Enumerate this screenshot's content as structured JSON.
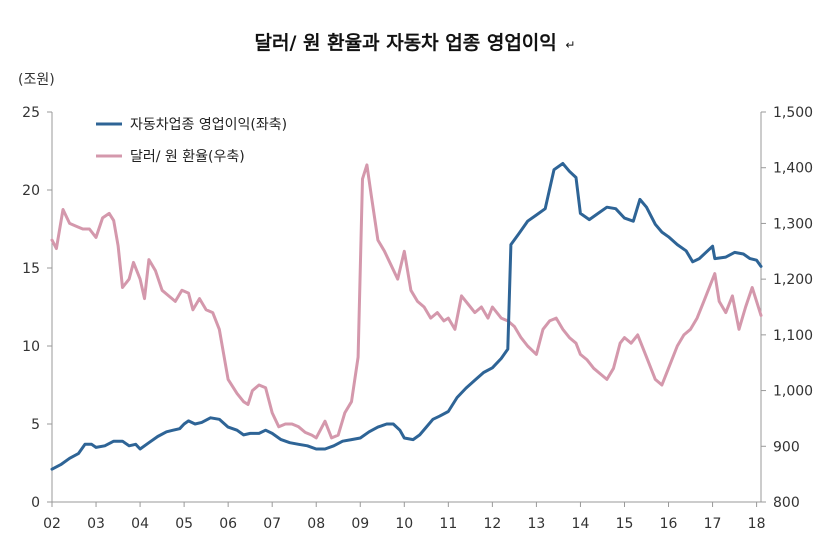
{
  "chart_data": {
    "type": "line",
    "title": "달러/ 원 환율과 자동차 업종 영업이익",
    "title_end_mark": "↵",
    "left_axis": {
      "unit_label": "(조원)",
      "ylim": [
        0,
        25
      ],
      "ticks": [
        "0",
        "5",
        "10",
        "15",
        "20",
        "25"
      ],
      "tick_values": [
        0,
        5,
        10,
        15,
        20,
        25
      ]
    },
    "right_axis": {
      "ylim": [
        800,
        1500
      ],
      "ticks": [
        "800",
        "900",
        "1,000",
        "1,100",
        "1,200",
        "1,300",
        "1,400",
        "1,500"
      ],
      "tick_values": [
        800,
        900,
        1000,
        1100,
        1200,
        1300,
        1400,
        1500
      ]
    },
    "x_axis": {
      "xlim": [
        2002,
        2018.1
      ],
      "ticks": [
        "02",
        "03",
        "04",
        "05",
        "06",
        "07",
        "08",
        "09",
        "10",
        "11",
        "12",
        "13",
        "14",
        "15",
        "16",
        "17",
        "18"
      ],
      "tick_values": [
        2002,
        2003,
        2004,
        2005,
        2006,
        2007,
        2008,
        2009,
        2010,
        2011,
        2012,
        2013,
        2014,
        2015,
        2016,
        2017,
        2018
      ]
    },
    "grid": false,
    "legend_position": "top-left",
    "series": [
      {
        "name": "자동차업종 영업이익(좌축)",
        "axis": "left",
        "color": "#2e6496",
        "points": [
          [
            2002.0,
            2.1
          ],
          [
            2002.2,
            2.4
          ],
          [
            2002.4,
            2.8
          ],
          [
            2002.6,
            3.1
          ],
          [
            2002.75,
            3.7
          ],
          [
            2002.9,
            3.7
          ],
          [
            2003.0,
            3.5
          ],
          [
            2003.2,
            3.6
          ],
          [
            2003.4,
            3.9
          ],
          [
            2003.6,
            3.9
          ],
          [
            2003.75,
            3.6
          ],
          [
            2003.9,
            3.7
          ],
          [
            2004.0,
            3.4
          ],
          [
            2004.2,
            3.8
          ],
          [
            2004.4,
            4.2
          ],
          [
            2004.6,
            4.5
          ],
          [
            2004.75,
            4.6
          ],
          [
            2004.9,
            4.7
          ],
          [
            2005.0,
            5.0
          ],
          [
            2005.1,
            5.2
          ],
          [
            2005.25,
            5.0
          ],
          [
            2005.4,
            5.1
          ],
          [
            2005.6,
            5.4
          ],
          [
            2005.8,
            5.3
          ],
          [
            2006.0,
            4.8
          ],
          [
            2006.2,
            4.6
          ],
          [
            2006.35,
            4.3
          ],
          [
            2006.5,
            4.4
          ],
          [
            2006.7,
            4.4
          ],
          [
            2006.85,
            4.6
          ],
          [
            2007.0,
            4.4
          ],
          [
            2007.2,
            4.0
          ],
          [
            2007.4,
            3.8
          ],
          [
            2007.6,
            3.7
          ],
          [
            2007.8,
            3.6
          ],
          [
            2008.0,
            3.4
          ],
          [
            2008.2,
            3.4
          ],
          [
            2008.4,
            3.6
          ],
          [
            2008.6,
            3.9
          ],
          [
            2008.8,
            4.0
          ],
          [
            2009.0,
            4.1
          ],
          [
            2009.2,
            4.5
          ],
          [
            2009.4,
            4.8
          ],
          [
            2009.6,
            5.0
          ],
          [
            2009.75,
            5.0
          ],
          [
            2009.9,
            4.6
          ],
          [
            2010.0,
            4.1
          ],
          [
            2010.2,
            4.0
          ],
          [
            2010.35,
            4.3
          ],
          [
            2010.5,
            4.8
          ],
          [
            2010.65,
            5.3
          ],
          [
            2010.8,
            5.5
          ],
          [
            2011.0,
            5.8
          ],
          [
            2011.2,
            6.7
          ],
          [
            2011.4,
            7.3
          ],
          [
            2011.6,
            7.8
          ],
          [
            2011.8,
            8.3
          ],
          [
            2012.0,
            8.6
          ],
          [
            2012.2,
            9.2
          ],
          [
            2012.35,
            9.8
          ],
          [
            2012.42,
            16.5
          ],
          [
            2012.6,
            17.2
          ],
          [
            2012.8,
            18.0
          ],
          [
            2013.0,
            18.4
          ],
          [
            2013.2,
            18.8
          ],
          [
            2013.4,
            21.3
          ],
          [
            2013.6,
            21.7
          ],
          [
            2013.75,
            21.2
          ],
          [
            2013.9,
            20.8
          ],
          [
            2014.0,
            18.5
          ],
          [
            2014.2,
            18.1
          ],
          [
            2014.4,
            18.5
          ],
          [
            2014.6,
            18.9
          ],
          [
            2014.8,
            18.8
          ],
          [
            2015.0,
            18.2
          ],
          [
            2015.2,
            18.0
          ],
          [
            2015.35,
            19.4
          ],
          [
            2015.5,
            18.9
          ],
          [
            2015.7,
            17.8
          ],
          [
            2015.85,
            17.3
          ],
          [
            2016.0,
            17.0
          ],
          [
            2016.2,
            16.5
          ],
          [
            2016.4,
            16.1
          ],
          [
            2016.55,
            15.4
          ],
          [
            2016.7,
            15.6
          ],
          [
            2017.0,
            16.4
          ],
          [
            2017.05,
            15.6
          ],
          [
            2017.3,
            15.7
          ],
          [
            2017.5,
            16.0
          ],
          [
            2017.7,
            15.9
          ],
          [
            2017.85,
            15.6
          ],
          [
            2018.0,
            15.5
          ],
          [
            2018.1,
            15.1
          ]
        ]
      },
      {
        "name": "달러/ 원 환율(우축)",
        "axis": "right",
        "color": "#d498ac",
        "points": [
          [
            2002.0,
            1270
          ],
          [
            2002.1,
            1255
          ],
          [
            2002.25,
            1325
          ],
          [
            2002.4,
            1300
          ],
          [
            2002.55,
            1295
          ],
          [
            2002.7,
            1290
          ],
          [
            2002.85,
            1290
          ],
          [
            2003.0,
            1275
          ],
          [
            2003.15,
            1310
          ],
          [
            2003.3,
            1318
          ],
          [
            2003.4,
            1305
          ],
          [
            2003.5,
            1260
          ],
          [
            2003.6,
            1185
          ],
          [
            2003.75,
            1200
          ],
          [
            2003.85,
            1230
          ],
          [
            2004.0,
            1200
          ],
          [
            2004.1,
            1165
          ],
          [
            2004.2,
            1235
          ],
          [
            2004.35,
            1215
          ],
          [
            2004.5,
            1180
          ],
          [
            2004.65,
            1170
          ],
          [
            2004.8,
            1160
          ],
          [
            2004.95,
            1180
          ],
          [
            2005.1,
            1175
          ],
          [
            2005.2,
            1145
          ],
          [
            2005.35,
            1165
          ],
          [
            2005.5,
            1145
          ],
          [
            2005.65,
            1140
          ],
          [
            2005.8,
            1110
          ],
          [
            2006.0,
            1020
          ],
          [
            2006.2,
            995
          ],
          [
            2006.35,
            980
          ],
          [
            2006.45,
            975
          ],
          [
            2006.55,
            1000
          ],
          [
            2006.7,
            1010
          ],
          [
            2006.85,
            1005
          ],
          [
            2007.0,
            960
          ],
          [
            2007.15,
            935
          ],
          [
            2007.3,
            940
          ],
          [
            2007.45,
            940
          ],
          [
            2007.6,
            935
          ],
          [
            2007.75,
            925
          ],
          [
            2007.9,
            920
          ],
          [
            2008.0,
            915
          ],
          [
            2008.2,
            945
          ],
          [
            2008.35,
            915
          ],
          [
            2008.5,
            920
          ],
          [
            2008.65,
            960
          ],
          [
            2008.8,
            980
          ],
          [
            2008.95,
            1060
          ],
          [
            2009.05,
            1380
          ],
          [
            2009.15,
            1405
          ],
          [
            2009.25,
            1350
          ],
          [
            2009.4,
            1270
          ],
          [
            2009.55,
            1250
          ],
          [
            2009.7,
            1225
          ],
          [
            2009.85,
            1200
          ],
          [
            2010.0,
            1250
          ],
          [
            2010.15,
            1180
          ],
          [
            2010.3,
            1160
          ],
          [
            2010.45,
            1150
          ],
          [
            2010.6,
            1130
          ],
          [
            2010.75,
            1140
          ],
          [
            2010.9,
            1125
          ],
          [
            2011.0,
            1130
          ],
          [
            2011.15,
            1110
          ],
          [
            2011.3,
            1170
          ],
          [
            2011.5,
            1150
          ],
          [
            2011.6,
            1140
          ],
          [
            2011.75,
            1150
          ],
          [
            2011.9,
            1130
          ],
          [
            2012.0,
            1150
          ],
          [
            2012.2,
            1130
          ],
          [
            2012.35,
            1125
          ],
          [
            2012.5,
            1115
          ],
          [
            2012.65,
            1095
          ],
          [
            2012.8,
            1080
          ],
          [
            2013.0,
            1065
          ],
          [
            2013.15,
            1110
          ],
          [
            2013.3,
            1125
          ],
          [
            2013.45,
            1130
          ],
          [
            2013.6,
            1110
          ],
          [
            2013.75,
            1095
          ],
          [
            2013.9,
            1085
          ],
          [
            2014.0,
            1065
          ],
          [
            2014.15,
            1055
          ],
          [
            2014.3,
            1040
          ],
          [
            2014.45,
            1030
          ],
          [
            2014.6,
            1020
          ],
          [
            2014.75,
            1040
          ],
          [
            2014.9,
            1085
          ],
          [
            2015.0,
            1095
          ],
          [
            2015.15,
            1085
          ],
          [
            2015.3,
            1100
          ],
          [
            2015.5,
            1060
          ],
          [
            2015.7,
            1020
          ],
          [
            2015.85,
            1010
          ],
          [
            2016.0,
            1040
          ],
          [
            2016.2,
            1080
          ],
          [
            2016.35,
            1100
          ],
          [
            2016.5,
            1110
          ],
          [
            2016.65,
            1130
          ],
          [
            2016.8,
            1160
          ],
          [
            2016.95,
            1190
          ],
          [
            2017.05,
            1210
          ],
          [
            2017.15,
            1160
          ],
          [
            2017.3,
            1140
          ],
          [
            2017.45,
            1170
          ],
          [
            2017.6,
            1110
          ],
          [
            2017.75,
            1150
          ],
          [
            2017.9,
            1185
          ],
          [
            2018.0,
            1160
          ],
          [
            2018.1,
            1135
          ]
        ]
      }
    ]
  }
}
